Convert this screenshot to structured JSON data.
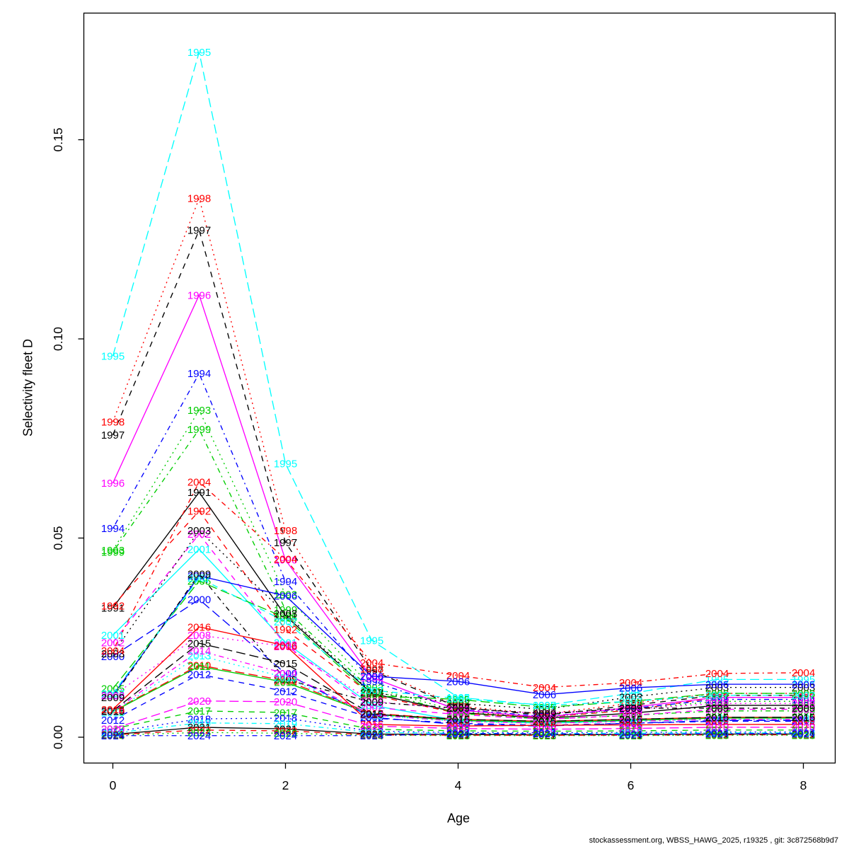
{
  "chart_data": {
    "type": "line",
    "title": "",
    "xlabel": "Age",
    "ylabel": "Selectivity fleet D",
    "x": [
      0,
      1,
      2,
      3,
      4,
      5,
      6,
      7,
      8
    ],
    "xticks": [
      0,
      2,
      4,
      6,
      8
    ],
    "yticks": [
      {
        "value": 0.0,
        "label": "0.00"
      },
      {
        "value": 0.05,
        "label": "0.05"
      },
      {
        "value": 0.1,
        "label": "0.10"
      },
      {
        "value": 0.15,
        "label": "0.15"
      }
    ],
    "xlim": [
      -0.34,
      8.37
    ],
    "ylim": [
      -0.006,
      0.182
    ],
    "grid": false,
    "legend": "year-labels-on-points",
    "palette": {
      "black": "#000000",
      "red": "#FF0000",
      "green": "#00CD00",
      "blue": "#0000FF",
      "cyan": "#00FFFF",
      "magenta": "#FF00FF"
    },
    "series": [
      {
        "name": "1991",
        "color": "#000000",
        "dash": "solid",
        "values": [
          0.0325,
          0.0615,
          0.0305,
          0.011,
          0.0062,
          0.0048,
          0.006,
          0.008,
          0.008
        ]
      },
      {
        "name": "1992",
        "color": "#FF0000",
        "dash": "dashed",
        "values": [
          0.033,
          0.0568,
          0.027,
          0.0106,
          0.006,
          0.005,
          0.0068,
          0.01,
          0.01
        ]
      },
      {
        "name": "1993",
        "color": "#00CD00",
        "dash": "dotted",
        "values": [
          0.0469,
          0.0821,
          0.0358,
          0.0125,
          0.0065,
          0.005,
          0.007,
          0.009,
          0.009
        ]
      },
      {
        "name": "1994",
        "color": "#0000FF",
        "dash": "dotdash",
        "values": [
          0.0524,
          0.0913,
          0.0391,
          0.014,
          0.007,
          0.0052,
          0.0072,
          0.0095,
          0.0095
        ]
      },
      {
        "name": "1995",
        "color": "#00FFFF",
        "dash": "longdash",
        "values": [
          0.0957,
          0.172,
          0.0687,
          0.0243,
          0.01,
          0.008,
          0.011,
          0.0145,
          0.0145
        ]
      },
      {
        "name": "1996",
        "color": "#FF00FF",
        "dash": "solid",
        "values": [
          0.0638,
          0.111,
          0.0445,
          0.015,
          0.0068,
          0.005,
          0.0075,
          0.01,
          0.01
        ]
      },
      {
        "name": "1997",
        "color": "#000000",
        "dash": "dashed",
        "values": [
          0.0759,
          0.1273,
          0.0489,
          0.0168,
          0.0075,
          0.0055,
          0.008,
          0.0105,
          0.0105
        ]
      },
      {
        "name": "1998",
        "color": "#FF0000",
        "dash": "dotted",
        "values": [
          0.0792,
          0.1353,
          0.0519,
          0.0172,
          0.0078,
          0.0058,
          0.0085,
          0.011,
          0.011
        ]
      },
      {
        "name": "1999",
        "color": "#00CD00",
        "dash": "dotdash",
        "values": [
          0.0465,
          0.0773,
          0.032,
          0.0118,
          0.006,
          0.0045,
          0.0055,
          0.0066,
          0.0066
        ]
      },
      {
        "name": "2000",
        "color": "#0000FF",
        "dash": "longdash",
        "values": [
          0.0203,
          0.0346,
          0.016,
          0.005,
          0.0032,
          0.0028,
          0.0035,
          0.0042,
          0.0042
        ]
      },
      {
        "name": "2001",
        "color": "#00FFFF",
        "dash": "solid",
        "values": [
          0.0256,
          0.0472,
          0.0238,
          0.008,
          0.0042,
          0.0035,
          0.0042,
          0.005,
          0.005
        ]
      },
      {
        "name": "2002",
        "color": "#FF00FF",
        "dash": "dashed",
        "values": [
          0.0238,
          0.051,
          0.0232,
          0.0075,
          0.0057,
          0.0045,
          0.0055,
          0.007,
          0.007
        ]
      },
      {
        "name": "2003",
        "color": "#000000",
        "dash": "dotted",
        "values": [
          0.021,
          0.0519,
          0.031,
          0.0112,
          0.0085,
          0.007,
          0.0101,
          0.0125,
          0.0125
        ]
      },
      {
        "name": "2004",
        "color": "#FF0000",
        "dash": "dotdash",
        "values": [
          0.0217,
          0.0641,
          0.0447,
          0.0187,
          0.0155,
          0.0125,
          0.0137,
          0.016,
          0.0162
        ]
      },
      {
        "name": "2005",
        "color": "#00CD00",
        "dash": "longdash",
        "values": [
          0.0122,
          0.0392,
          0.03,
          0.0104,
          0.0095,
          0.0075,
          0.009,
          0.011,
          0.011
        ]
      },
      {
        "name": "2006",
        "color": "#0000FF",
        "dash": "solid",
        "values": [
          0.0105,
          0.0405,
          0.0355,
          0.0153,
          0.014,
          0.0107,
          0.0124,
          0.0133,
          0.0133
        ]
      },
      {
        "name": "2007",
        "color": "#00FFFF",
        "dash": "dashed",
        "values": [
          0.011,
          0.04,
          0.029,
          0.0118,
          0.0097,
          0.008,
          0.009,
          0.0105,
          0.0105
        ]
      },
      {
        "name": "2008",
        "color": "#FF00FF",
        "dash": "dotted",
        "values": [
          0.0104,
          0.0256,
          0.0228,
          0.009,
          0.007,
          0.006,
          0.007,
          0.0085,
          0.0085
        ]
      },
      {
        "name": "2009",
        "color": "#000000",
        "dash": "dotdash",
        "values": [
          0.01,
          0.041,
          0.0145,
          0.0088,
          0.0073,
          0.0059,
          0.0073,
          0.0073,
          0.0073
        ]
      },
      {
        "name": "2010",
        "color": "#FF0000",
        "dash": "longdash",
        "values": [
          0.0066,
          0.0181,
          0.0142,
          0.006,
          0.0045,
          0.004,
          0.0045,
          0.005,
          0.005
        ]
      },
      {
        "name": "2011",
        "color": "#00CD00",
        "dash": "solid",
        "values": [
          0.0064,
          0.0178,
          0.0138,
          0.0058,
          0.0042,
          0.0038,
          0.0042,
          0.0048,
          0.0048
        ]
      },
      {
        "name": "2012",
        "color": "#0000FF",
        "dash": "dashed",
        "values": [
          0.0043,
          0.0158,
          0.0115,
          0.0048,
          0.0035,
          0.003,
          0.0035,
          0.004,
          0.004
        ]
      },
      {
        "name": "2013",
        "color": "#00FFFF",
        "dash": "dotted",
        "values": [
          0.0062,
          0.0205,
          0.015,
          0.0055,
          0.004,
          0.0035,
          0.004,
          0.0045,
          0.0045
        ]
      },
      {
        "name": "2014",
        "color": "#FF00FF",
        "dash": "dotdash",
        "values": [
          0.0065,
          0.0217,
          0.016,
          0.0056,
          0.004,
          0.0035,
          0.004,
          0.0045,
          0.0045
        ]
      },
      {
        "name": "2015",
        "color": "#000000",
        "dash": "longdash",
        "values": [
          0.0066,
          0.0236,
          0.0185,
          0.0058,
          0.0045,
          0.004,
          0.0045,
          0.005,
          0.005
        ]
      },
      {
        "name": "2016",
        "color": "#FF0000",
        "dash": "solid",
        "values": [
          0.007,
          0.0277,
          0.023,
          0.0032,
          0.0028,
          0.003,
          0.0031,
          0.0032,
          0.0032
        ]
      },
      {
        "name": "2017",
        "color": "#00CD00",
        "dash": "dashed",
        "values": [
          0.0021,
          0.0066,
          0.0062,
          0.002,
          0.0016,
          0.0015,
          0.0016,
          0.0018,
          0.0018
        ]
      },
      {
        "name": "2018",
        "color": "#0000FF",
        "dash": "dotted",
        "values": [
          0.0013,
          0.0046,
          0.0048,
          0.0015,
          0.0012,
          0.0011,
          0.0012,
          0.0013,
          0.0013
        ]
      },
      {
        "name": "2019",
        "color": "#00FFFF",
        "dash": "dotdash",
        "values": [
          0.001,
          0.0036,
          0.0034,
          0.0012,
          0.001,
          0.0009,
          0.001,
          0.0011,
          0.0011
        ]
      },
      {
        "name": "2020",
        "color": "#FF00FF",
        "dash": "longdash",
        "values": [
          0.0021,
          0.0091,
          0.0089,
          0.0028,
          0.0022,
          0.002,
          0.0022,
          0.0025,
          0.0025
        ]
      },
      {
        "name": "2021",
        "color": "#000000",
        "dash": "solid",
        "values": [
          0.0007,
          0.0025,
          0.0021,
          0.0008,
          0.0007,
          0.0006,
          0.0007,
          0.0008,
          0.0008
        ]
      },
      {
        "name": "2022",
        "color": "#FF0000",
        "dash": "dashed",
        "values": [
          0.0006,
          0.0018,
          0.0016,
          0.0006,
          0.0005,
          0.0005,
          0.0005,
          0.0006,
          0.0006
        ]
      },
      {
        "name": "2023",
        "color": "#00CD00",
        "dash": "dotted",
        "values": [
          0.0005,
          0.0012,
          0.001,
          0.0005,
          0.0004,
          0.0004,
          0.0004,
          0.0005,
          0.0005
        ]
      },
      {
        "name": "2024",
        "color": "#0000FF",
        "dash": "dotdash",
        "values": [
          0.0004,
          0.0004,
          0.0004,
          0.0004,
          0.0009,
          0.0009,
          0.0007,
          0.0009,
          0.0009
        ]
      }
    ]
  },
  "footer": {
    "text": "stockassessment.org, WBSS_HAWG_2025, r19325 , git: 3c872568b9d7"
  }
}
